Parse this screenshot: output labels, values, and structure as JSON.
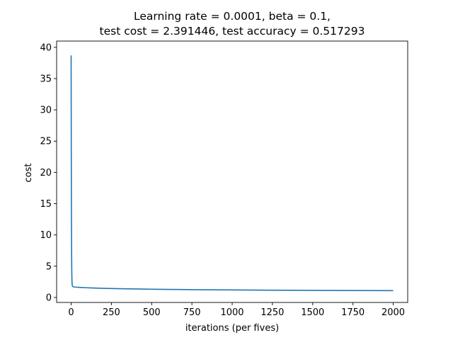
{
  "chart_data": {
    "type": "line",
    "title": [
      "Learning rate = 0.0001, beta = 0.1,",
      "test cost = 2.391446, test accuracy = 0.517293"
    ],
    "xlabel": "iterations (per fives)",
    "ylabel": "cost",
    "xlim": [
      -90,
      2090
    ],
    "ylim": [
      -0.8,
      41
    ],
    "xticks": [
      0,
      250,
      500,
      750,
      1000,
      1250,
      1500,
      1750,
      2000
    ],
    "yticks": [
      0,
      5,
      10,
      15,
      20,
      25,
      30,
      35,
      40
    ],
    "grid": false,
    "series": [
      {
        "color": "#1f77b4",
        "x": [
          0,
          1,
          2,
          3,
          4,
          5,
          6,
          7,
          8,
          10,
          12,
          15,
          20,
          30,
          50,
          100,
          150,
          200,
          250,
          300,
          400,
          500,
          600,
          750,
          1000,
          1250,
          1500,
          1750,
          2000
        ],
        "y": [
          38.7,
          24.0,
          13.5,
          7.5,
          4.3,
          2.9,
          2.2,
          1.95,
          1.82,
          1.75,
          1.72,
          1.7,
          1.68,
          1.65,
          1.62,
          1.55,
          1.5,
          1.46,
          1.43,
          1.4,
          1.36,
          1.32,
          1.29,
          1.25,
          1.2,
          1.16,
          1.13,
          1.11,
          1.09
        ]
      }
    ]
  }
}
